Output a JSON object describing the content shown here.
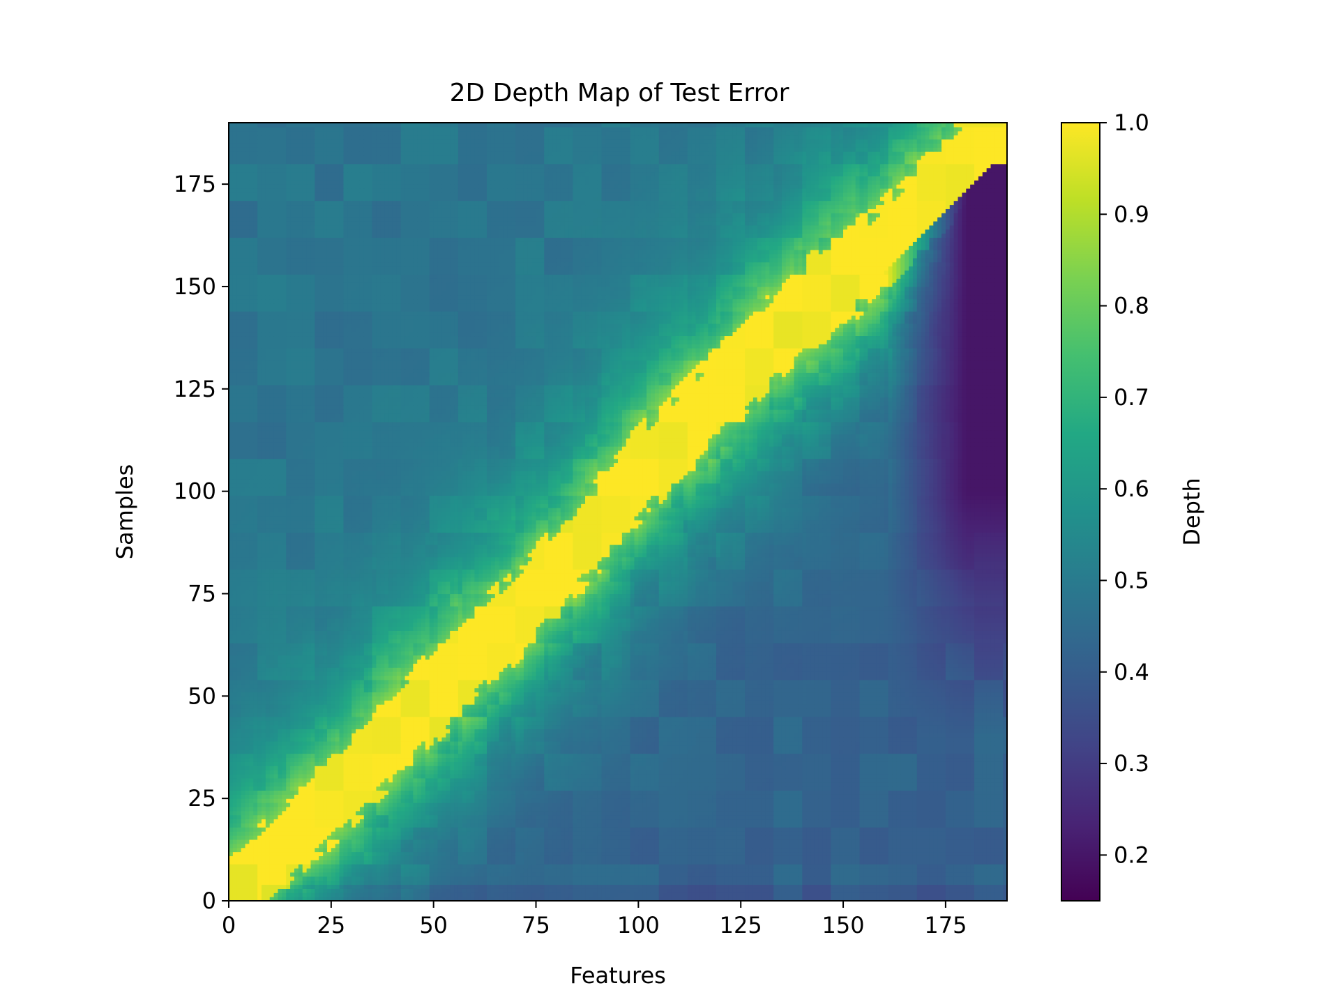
{
  "chart_data": {
    "type": "heatmap",
    "title": "2D Depth Map of Test Error",
    "xlabel": "Features",
    "ylabel": "Samples",
    "xlim": [
      0,
      190
    ],
    "ylim": [
      0,
      190
    ],
    "xticks": [
      0,
      25,
      50,
      75,
      100,
      125,
      150,
      175
    ],
    "yticks": [
      0,
      25,
      50,
      75,
      100,
      125,
      150,
      175
    ],
    "grid": false,
    "colormap": "viridis",
    "colorbar": {
      "label": "Depth",
      "range": [
        0.15,
        1.0
      ],
      "ticks": [
        0.2,
        0.3,
        0.4,
        0.5,
        0.6,
        0.7,
        0.8,
        0.9,
        1.0
      ]
    },
    "structure": {
      "diagonal_ridge_value": 1.0,
      "ridge_width_samples": 8,
      "upper_left_region_value": 0.48,
      "lower_right_region_value": 0.42,
      "far_right_corner_min_value": 0.15,
      "far_right_corner_columns": [
        175,
        190
      ],
      "far_right_corner_rows": [
        80,
        180
      ]
    },
    "ridge_path": {
      "x": [
        0,
        10,
        20,
        30,
        40,
        50,
        60,
        70,
        80,
        90,
        100,
        110,
        120,
        130,
        140,
        150,
        160,
        170,
        180,
        190
      ],
      "y": [
        0,
        10,
        20,
        30,
        40,
        50,
        60,
        70,
        80,
        92,
        104,
        114,
        124,
        134,
        144,
        152,
        160,
        170,
        180,
        190
      ]
    }
  }
}
